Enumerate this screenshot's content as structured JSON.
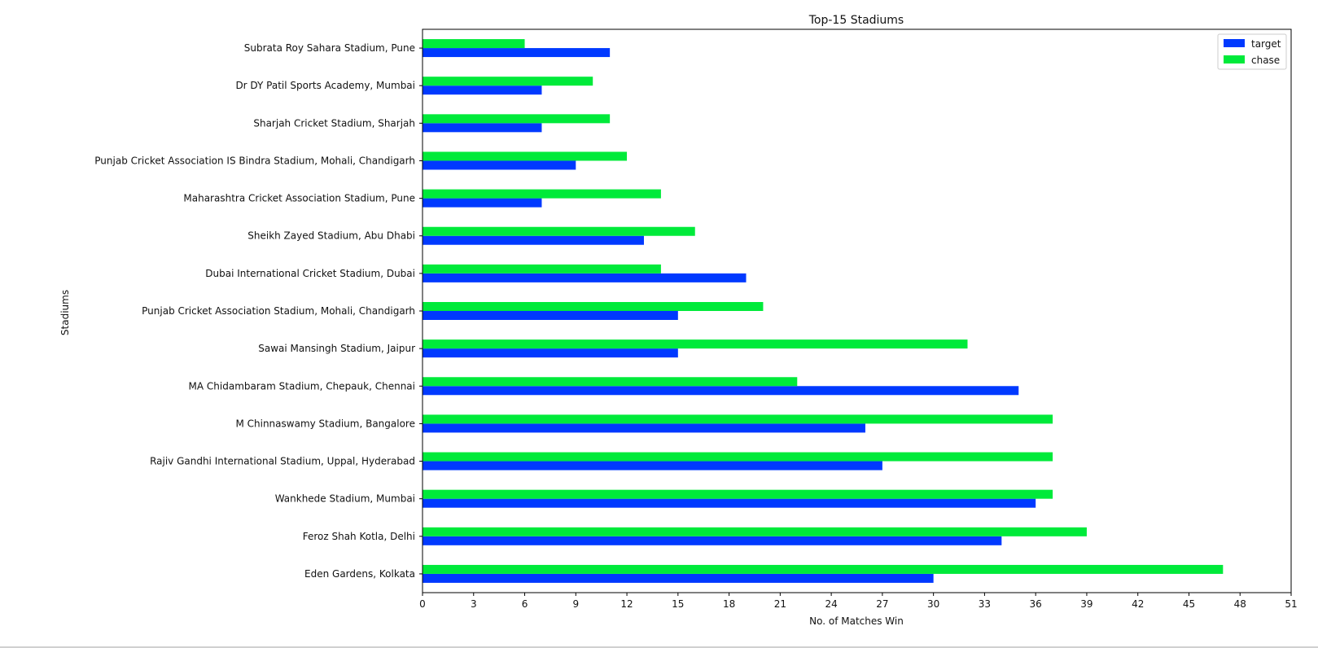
{
  "chart_data": {
    "type": "bar",
    "orientation": "horizontal",
    "title": "Top-15 Stadiums",
    "xlabel": "No. of Matches Win",
    "ylabel": "Stadiums",
    "xlim": [
      0,
      51
    ],
    "xticks": [
      0,
      3,
      6,
      9,
      12,
      15,
      18,
      21,
      24,
      27,
      30,
      33,
      36,
      39,
      42,
      45,
      48,
      51
    ],
    "legend_position": "top-right",
    "grid": false,
    "categories": [
      "Eden Gardens, Kolkata",
      "Feroz Shah Kotla, Delhi",
      "Wankhede Stadium, Mumbai",
      "Rajiv Gandhi International Stadium, Uppal, Hyderabad",
      "M Chinnaswamy Stadium, Bangalore",
      "MA Chidambaram Stadium, Chepauk, Chennai",
      "Sawai Mansingh Stadium, Jaipur",
      "Punjab Cricket Association Stadium, Mohali, Chandigarh",
      "Dubai International Cricket Stadium, Dubai",
      "Sheikh Zayed Stadium, Abu Dhabi",
      "Maharashtra Cricket Association Stadium, Pune",
      "Punjab Cricket Association IS Bindra Stadium, Mohali, Chandigarh",
      "Sharjah Cricket Stadium, Sharjah",
      "Dr DY Patil Sports Academy, Mumbai",
      "Subrata Roy Sahara Stadium, Pune"
    ],
    "series": [
      {
        "name": "target",
        "color": "#0039ff",
        "values": [
          30,
          34,
          36,
          27,
          26,
          35,
          15,
          15,
          19,
          13,
          7,
          9,
          7,
          7,
          11
        ]
      },
      {
        "name": "chase",
        "color": "#00ea3a",
        "values": [
          47,
          39,
          37,
          37,
          37,
          22,
          32,
          20,
          14,
          16,
          14,
          12,
          11,
          10,
          6
        ]
      }
    ]
  }
}
